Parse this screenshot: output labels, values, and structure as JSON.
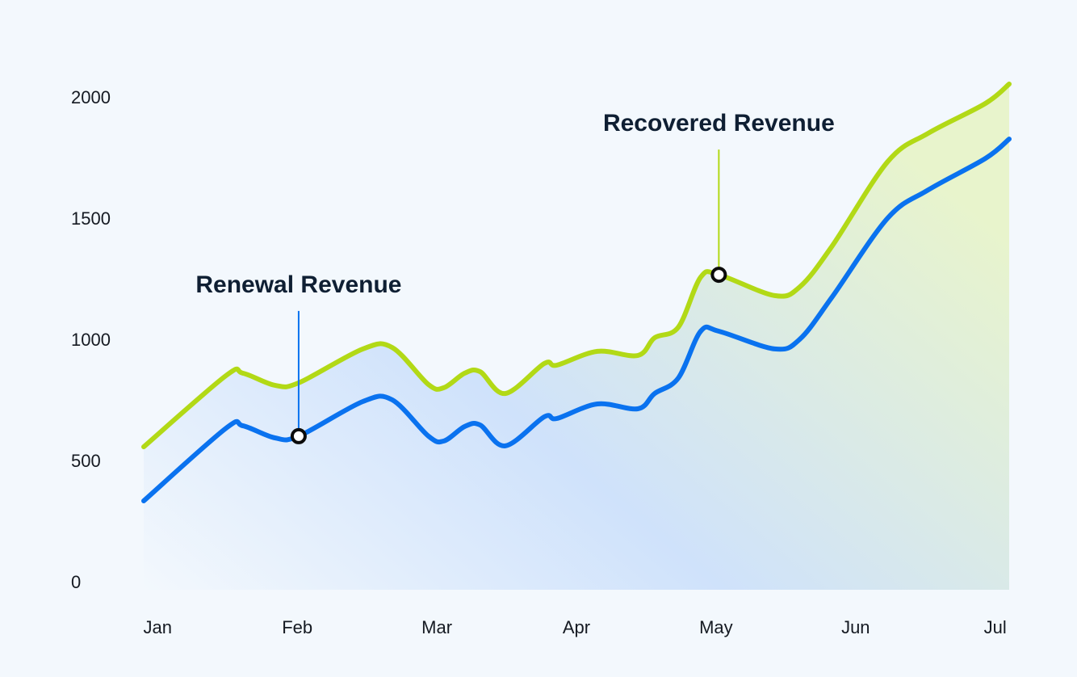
{
  "chart_data": {
    "type": "line",
    "x": [
      -0.1,
      0.49,
      0.61,
      0.84,
      1.01,
      1.47,
      1.68,
      1.94,
      2.05,
      2.2,
      2.31,
      2.49,
      2.77,
      2.86,
      3.15,
      3.44,
      3.56,
      3.73,
      3.89,
      4.02,
      4.42,
      4.6,
      4.83,
      5.23,
      5.52,
      5.93,
      6.1
    ],
    "series": [
      {
        "name": "Recovered Revenue",
        "color": "#b2d916",
        "highlight": 19,
        "values": [
          563,
          857,
          867,
          817,
          827,
          967,
          973,
          820,
          807,
          867,
          873,
          783,
          907,
          900,
          957,
          940,
          1013,
          1057,
          1263,
          1273,
          1187,
          1223,
          1390,
          1740,
          1857,
          1980,
          2060
        ]
      },
      {
        "name": "Renewal Revenue",
        "color": "#0a72ef",
        "highlight": 4,
        "values": [
          340,
          640,
          650,
          600,
          607,
          750,
          757,
          607,
          587,
          647,
          653,
          567,
          687,
          680,
          740,
          720,
          783,
          847,
          1040,
          1040,
          967,
          1007,
          1180,
          1507,
          1623,
          1753,
          1833
        ]
      }
    ],
    "xlim": [
      -0.1,
      6.1
    ],
    "xticks": [
      {
        "value": 0,
        "label": "Jan"
      },
      {
        "value": 1,
        "label": "Feb"
      },
      {
        "value": 2,
        "label": "Mar"
      },
      {
        "value": 3,
        "label": "Apr"
      },
      {
        "value": 4,
        "label": "May"
      },
      {
        "value": 5,
        "label": "Jun"
      },
      {
        "value": 6,
        "label": "Jul"
      }
    ],
    "ylim": [
      0,
      2000
    ],
    "yticks": [
      0,
      500,
      1000,
      1500,
      2000
    ],
    "grid": false
  }
}
